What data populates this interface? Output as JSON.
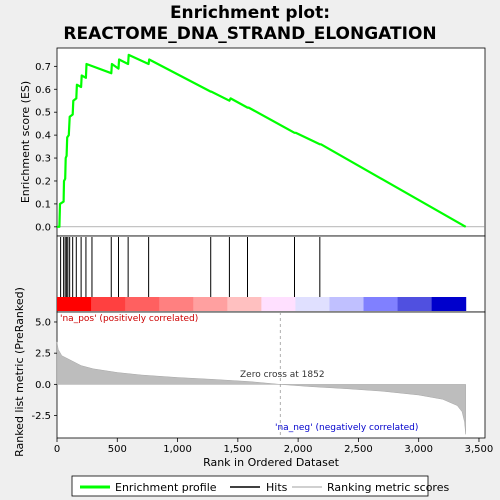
{
  "title_line1": "Enrichment plot:",
  "title_line2": "REACTOME_DNA_STRAND_ELONGATION",
  "chart_data": {
    "type": "line",
    "top_panel": {
      "ylabel": "Enrichment score (ES)",
      "ylim": [
        -0.04,
        0.78
      ],
      "yticks": [
        "0.0",
        "0.1",
        "0.2",
        "0.3",
        "0.4",
        "0.5",
        "0.6",
        "0.7"
      ],
      "ytick_values": [
        0.0,
        0.1,
        0.2,
        0.3,
        0.4,
        0.5,
        0.6,
        0.7
      ],
      "series": [
        {
          "name": "Enrichment profile",
          "color": "#00ff00",
          "points": [
            [
              0,
              0
            ],
            [
              20,
              0
            ],
            [
              25,
              0.1
            ],
            [
              55,
              0.11
            ],
            [
              58,
              0.2
            ],
            [
              68,
              0.21
            ],
            [
              72,
              0.3
            ],
            [
              80,
              0.31
            ],
            [
              85,
              0.39
            ],
            [
              98,
              0.4
            ],
            [
              105,
              0.48
            ],
            [
              130,
              0.49
            ],
            [
              135,
              0.55
            ],
            [
              160,
              0.56
            ],
            [
              165,
              0.62
            ],
            [
              200,
              0.61
            ],
            [
              205,
              0.66
            ],
            [
              240,
              0.65
            ],
            [
              245,
              0.71
            ],
            [
              450,
              0.67
            ],
            [
              455,
              0.71
            ],
            [
              510,
              0.69
            ],
            [
              515,
              0.73
            ],
            [
              590,
              0.71
            ],
            [
              595,
              0.75
            ],
            [
              760,
              0.71
            ],
            [
              765,
              0.73
            ],
            [
              1275,
              0.59
            ],
            [
              1280,
              0.59
            ],
            [
              1430,
              0.55
            ],
            [
              1440,
              0.56
            ],
            [
              1580,
              0.52
            ],
            [
              1590,
              0.52
            ],
            [
              1970,
              0.41
            ],
            [
              1980,
              0.41
            ],
            [
              2180,
              0.36
            ],
            [
              2190,
              0.36
            ],
            [
              3390,
              0.0
            ]
          ]
        }
      ]
    },
    "hits": [
      30,
      55,
      68,
      80,
      90,
      105,
      130,
      160,
      200,
      240,
      290,
      450,
      510,
      590,
      760,
      1275,
      1430,
      1580,
      1970,
      2180
    ],
    "heatmap_colors": [
      "#ff0000",
      "#ff4040",
      "#ff6060",
      "#ff8080",
      "#ffa0a0",
      "#ffc0c0",
      "#ffe0ff",
      "#e0e0ff",
      "#c0c0ff",
      "#8080ff",
      "#5050e0",
      "#0000cc"
    ],
    "bottom_panel": {
      "ylabel": "Ranked list metric (PreRanked)",
      "ylim": [
        -4.3,
        5.8
      ],
      "yticks": [
        "5.0",
        "2.5",
        "0.0",
        "-2.5"
      ],
      "ytick_values": [
        5.0,
        2.5,
        0.0,
        -2.5
      ],
      "metric_profile": [
        [
          0,
          3.4
        ],
        [
          10,
          2.8
        ],
        [
          40,
          2.3
        ],
        [
          100,
          2.0
        ],
        [
          200,
          1.5
        ],
        [
          300,
          1.25
        ],
        [
          500,
          0.95
        ],
        [
          700,
          0.75
        ],
        [
          1000,
          0.55
        ],
        [
          1300,
          0.4
        ],
        [
          1600,
          0.22
        ],
        [
          1852,
          0.0
        ],
        [
          2100,
          -0.18
        ],
        [
          2400,
          -0.35
        ],
        [
          2700,
          -0.55
        ],
        [
          3000,
          -0.85
        ],
        [
          3200,
          -1.2
        ],
        [
          3320,
          -1.7
        ],
        [
          3360,
          -2.2
        ],
        [
          3380,
          -3.0
        ],
        [
          3390,
          -4.0
        ]
      ],
      "zero_cross_label": "Zero cross at 1852",
      "zero_cross": 1852,
      "pos_label": "'na_pos' (positively correlated)",
      "neg_label": "'na_neg' (negatively correlated)"
    },
    "xlabel": "Rank in Ordered Dataset",
    "xlim": [
      0,
      3550
    ],
    "xticks": [
      "0",
      "500",
      "1,000",
      "1,500",
      "2,000",
      "2,500",
      "3,000",
      "3,500"
    ],
    "xtick_values": [
      0,
      500,
      1000,
      1500,
      2000,
      2500,
      3000,
      3500
    ],
    "max_rank": 3390,
    "legend": {
      "placement": "bottom",
      "items": [
        "Enrichment profile",
        "Hits",
        "Ranking metric scores"
      ]
    }
  }
}
